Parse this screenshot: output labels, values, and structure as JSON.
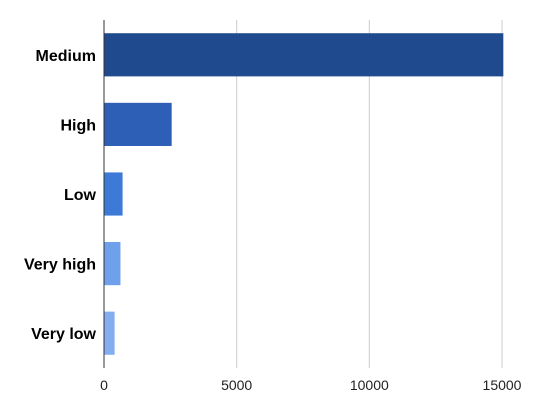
{
  "chart_data": {
    "type": "bar",
    "orientation": "horizontal",
    "title": "",
    "xlabel": "",
    "ylabel": "",
    "categories": [
      "Medium",
      "High",
      "Low",
      "Very high",
      "Very low"
    ],
    "values": [
      15050,
      2550,
      700,
      620,
      400
    ],
    "xlim": [
      0,
      15000
    ],
    "xticks": [
      "0",
      "5000",
      "10000",
      "15000"
    ],
    "grid": "vertical",
    "legend": "none",
    "colors": [
      "#1f4a8d",
      "#2c5fb5",
      "#3d79d6",
      "#6fa0ec",
      "#83aef0"
    ]
  }
}
